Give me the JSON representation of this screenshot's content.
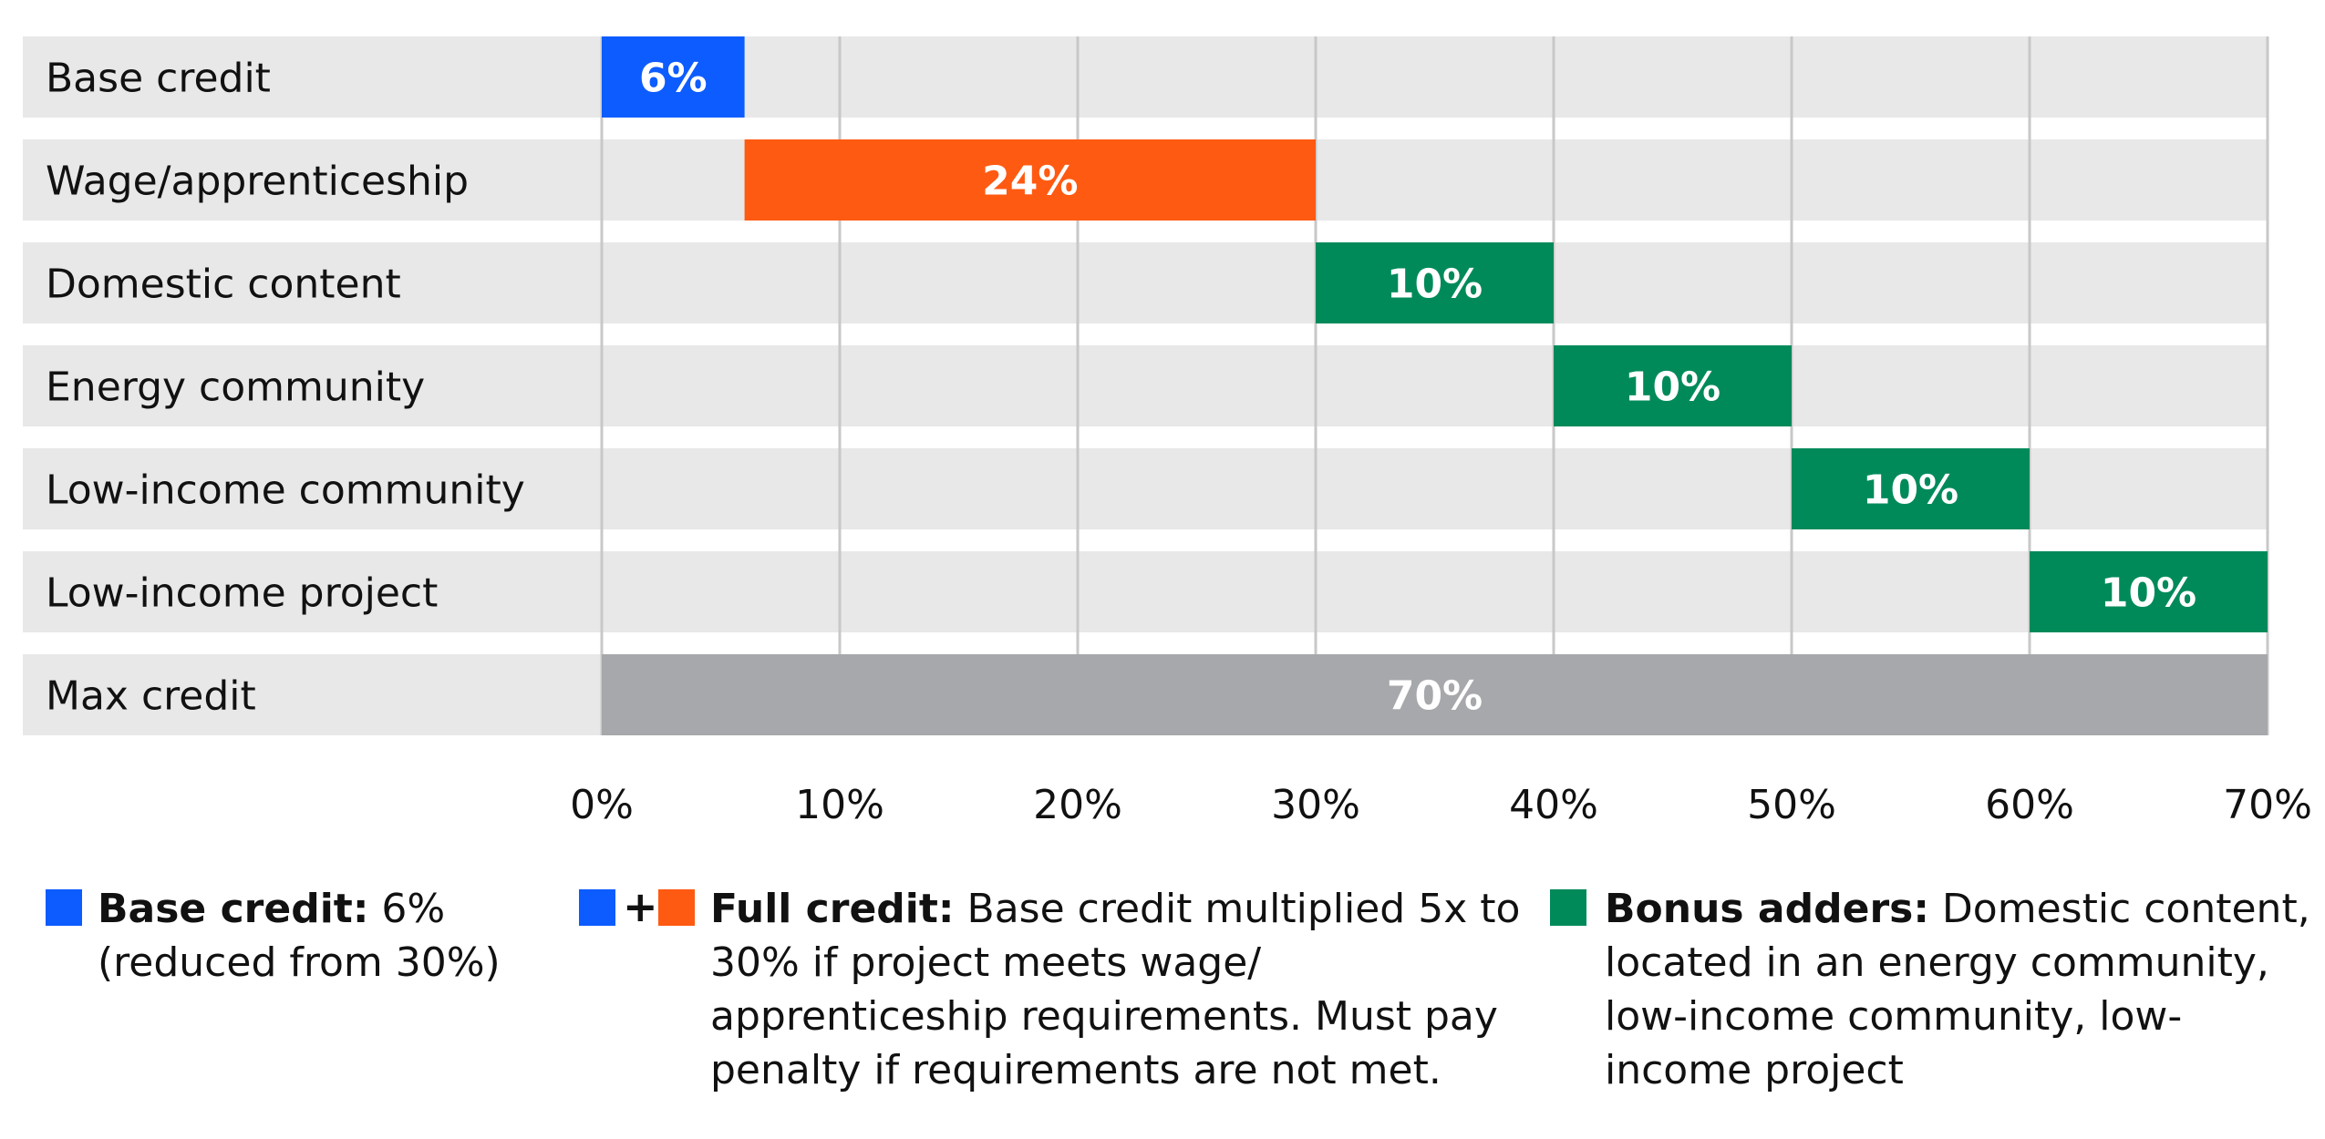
{
  "chart_data": {
    "type": "bar",
    "subtype": "waterfall",
    "categories": [
      "Base credit",
      "Wage/apprenticeship",
      "Domestic content",
      "Energy community",
      "Low-income community",
      "Low-income project",
      "Max credit"
    ],
    "bars": [
      {
        "category": "Base credit",
        "start": 0,
        "value": 6,
        "label": "6%",
        "group": "base"
      },
      {
        "category": "Wage/apprenticeship",
        "start": 6,
        "value": 24,
        "label": "24%",
        "group": "full"
      },
      {
        "category": "Domestic content",
        "start": 30,
        "value": 10,
        "label": "10%",
        "group": "bonus"
      },
      {
        "category": "Energy community",
        "start": 40,
        "value": 10,
        "label": "10%",
        "group": "bonus"
      },
      {
        "category": "Low-income community",
        "start": 50,
        "value": 10,
        "label": "10%",
        "group": "bonus"
      },
      {
        "category": "Low-income project",
        "start": 60,
        "value": 10,
        "label": "10%",
        "group": "bonus"
      },
      {
        "category": "Max credit",
        "start": 0,
        "value": 70,
        "label": "70%",
        "group": "total"
      }
    ],
    "xlim": [
      0,
      70
    ],
    "xticks": [
      0,
      10,
      20,
      30,
      40,
      50,
      60,
      70
    ],
    "xtick_labels": [
      "0%",
      "10%",
      "20%",
      "30%",
      "40%",
      "50%",
      "60%",
      "70%"
    ],
    "grid": true,
    "legend_position": "bottom"
  },
  "colors": {
    "base": "#0d5cff",
    "full": "#ff5a12",
    "bonus": "#008a5a",
    "total": "#a7a8ab",
    "row_background": "#e8e8e8",
    "gridline": "#c8c8c8",
    "bar_label": "#ffffff"
  },
  "legend": {
    "base": {
      "title": "Base credit:",
      "text": " 6% (reduced from 30%)"
    },
    "full": {
      "plus": "+",
      "title": "Full credit:",
      "text": " Base credit multiplied 5x to 30% if project meets wage/ apprenticeship requirements. Must pay penalty if requirements are not met."
    },
    "bonus": {
      "title": "Bonus adders:",
      "text": " Domestic content, located in an energy community, low-income community, low-income project"
    }
  }
}
